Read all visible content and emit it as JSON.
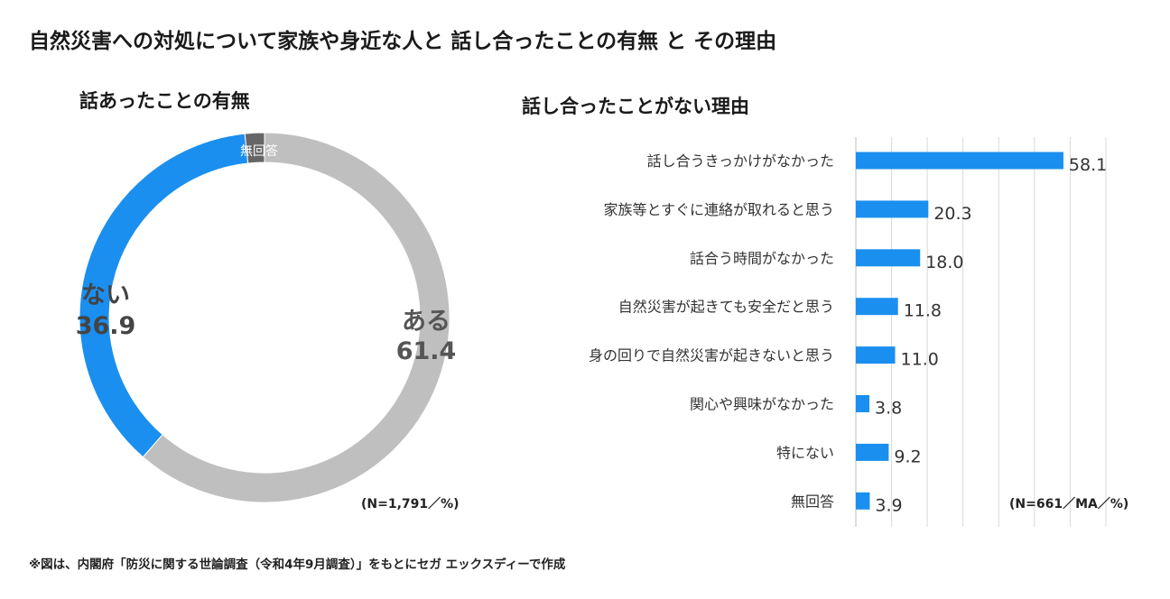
{
  "title": "自然災害への対処について家族や身近な人と 話し合ったことの有無 と その理由",
  "chart_data": [
    {
      "type": "pie",
      "title": "話あったことの有無",
      "hole": "donut",
      "slices": [
        {
          "label": "ある",
          "value": 61.4,
          "color": "#bfbfbf"
        },
        {
          "label": "ない",
          "value": 36.9,
          "color": "#1a8fef"
        },
        {
          "label": "無回答",
          "value": 1.7,
          "color": "#666666"
        }
      ],
      "note": "(N=1,791／%)"
    },
    {
      "type": "bar",
      "orientation": "horizontal",
      "title": "話し合ったことがない理由",
      "categories": [
        "話し合うきっかけがなかった",
        "家族等とすぐに連絡が取れると思う",
        "話合う時間がなかった",
        "自然災害が起きても安全だと思う",
        "身の回りで自然災害が起きないと思う",
        "関心や興味がなかった",
        "特にない",
        "無回答"
      ],
      "values": [
        58.1,
        20.3,
        18.0,
        11.8,
        11.0,
        3.8,
        9.2,
        3.9
      ],
      "value_labels": [
        "58.1",
        "20.3",
        "18.0",
        "11.8",
        "11.0",
        "3.8",
        "9.2",
        "3.9"
      ],
      "xlim": [
        0,
        70
      ],
      "grid": true,
      "bar_color": "#1a8fef",
      "note": "(N=661／MA／%)"
    }
  ],
  "source_note": "※図は、内閣府「防災に関する世論調査（令和4年9月調査）」をもとにセガ エックスディーで作成"
}
